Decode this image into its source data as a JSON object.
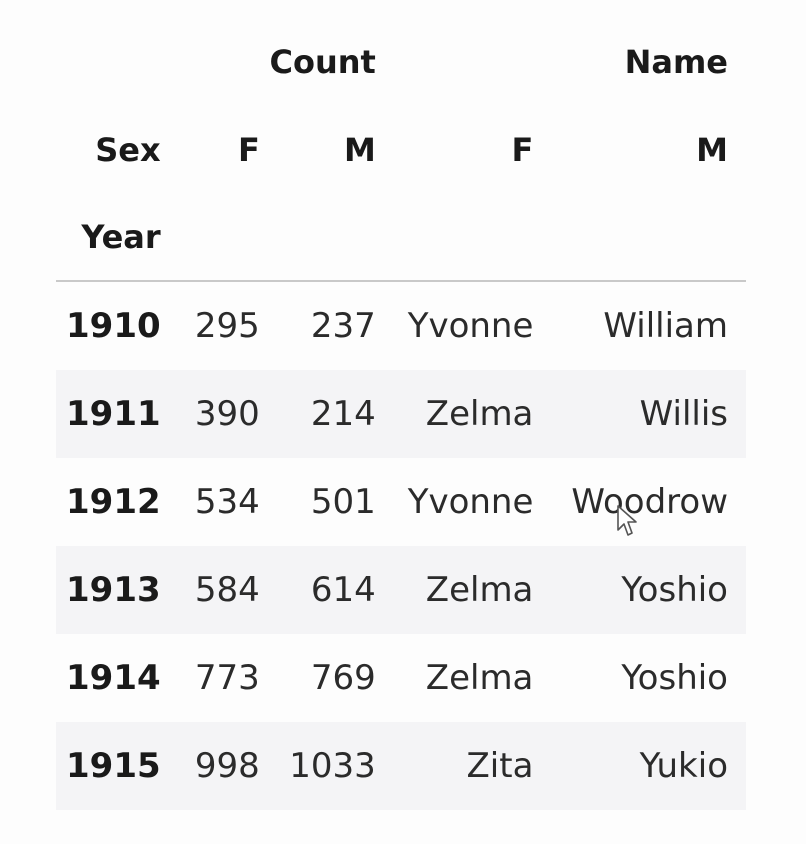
{
  "header": {
    "level0": {
      "count": "Count",
      "name": "Name"
    },
    "level1": {
      "index_name": "Sex",
      "count_f": "F",
      "count_m": "M",
      "name_f": "F",
      "name_m": "M"
    },
    "level2": {
      "index_name": "Year"
    }
  },
  "rows": [
    {
      "year": "1910",
      "count_f": "295",
      "count_m": "237",
      "name_f": "Yvonne",
      "name_m": "William"
    },
    {
      "year": "1911",
      "count_f": "390",
      "count_m": "214",
      "name_f": "Zelma",
      "name_m": "Willis"
    },
    {
      "year": "1912",
      "count_f": "534",
      "count_m": "501",
      "name_f": "Yvonne",
      "name_m": "Woodrow"
    },
    {
      "year": "1913",
      "count_f": "584",
      "count_m": "614",
      "name_f": "Zelma",
      "name_m": "Yoshio"
    },
    {
      "year": "1914",
      "count_f": "773",
      "count_m": "769",
      "name_f": "Zelma",
      "name_m": "Yoshio"
    },
    {
      "year": "1915",
      "count_f": "998",
      "count_m": "1033",
      "name_f": "Zita",
      "name_m": "Yukio"
    }
  ],
  "icons": {
    "cursor": "mouse-pointer-icon"
  }
}
